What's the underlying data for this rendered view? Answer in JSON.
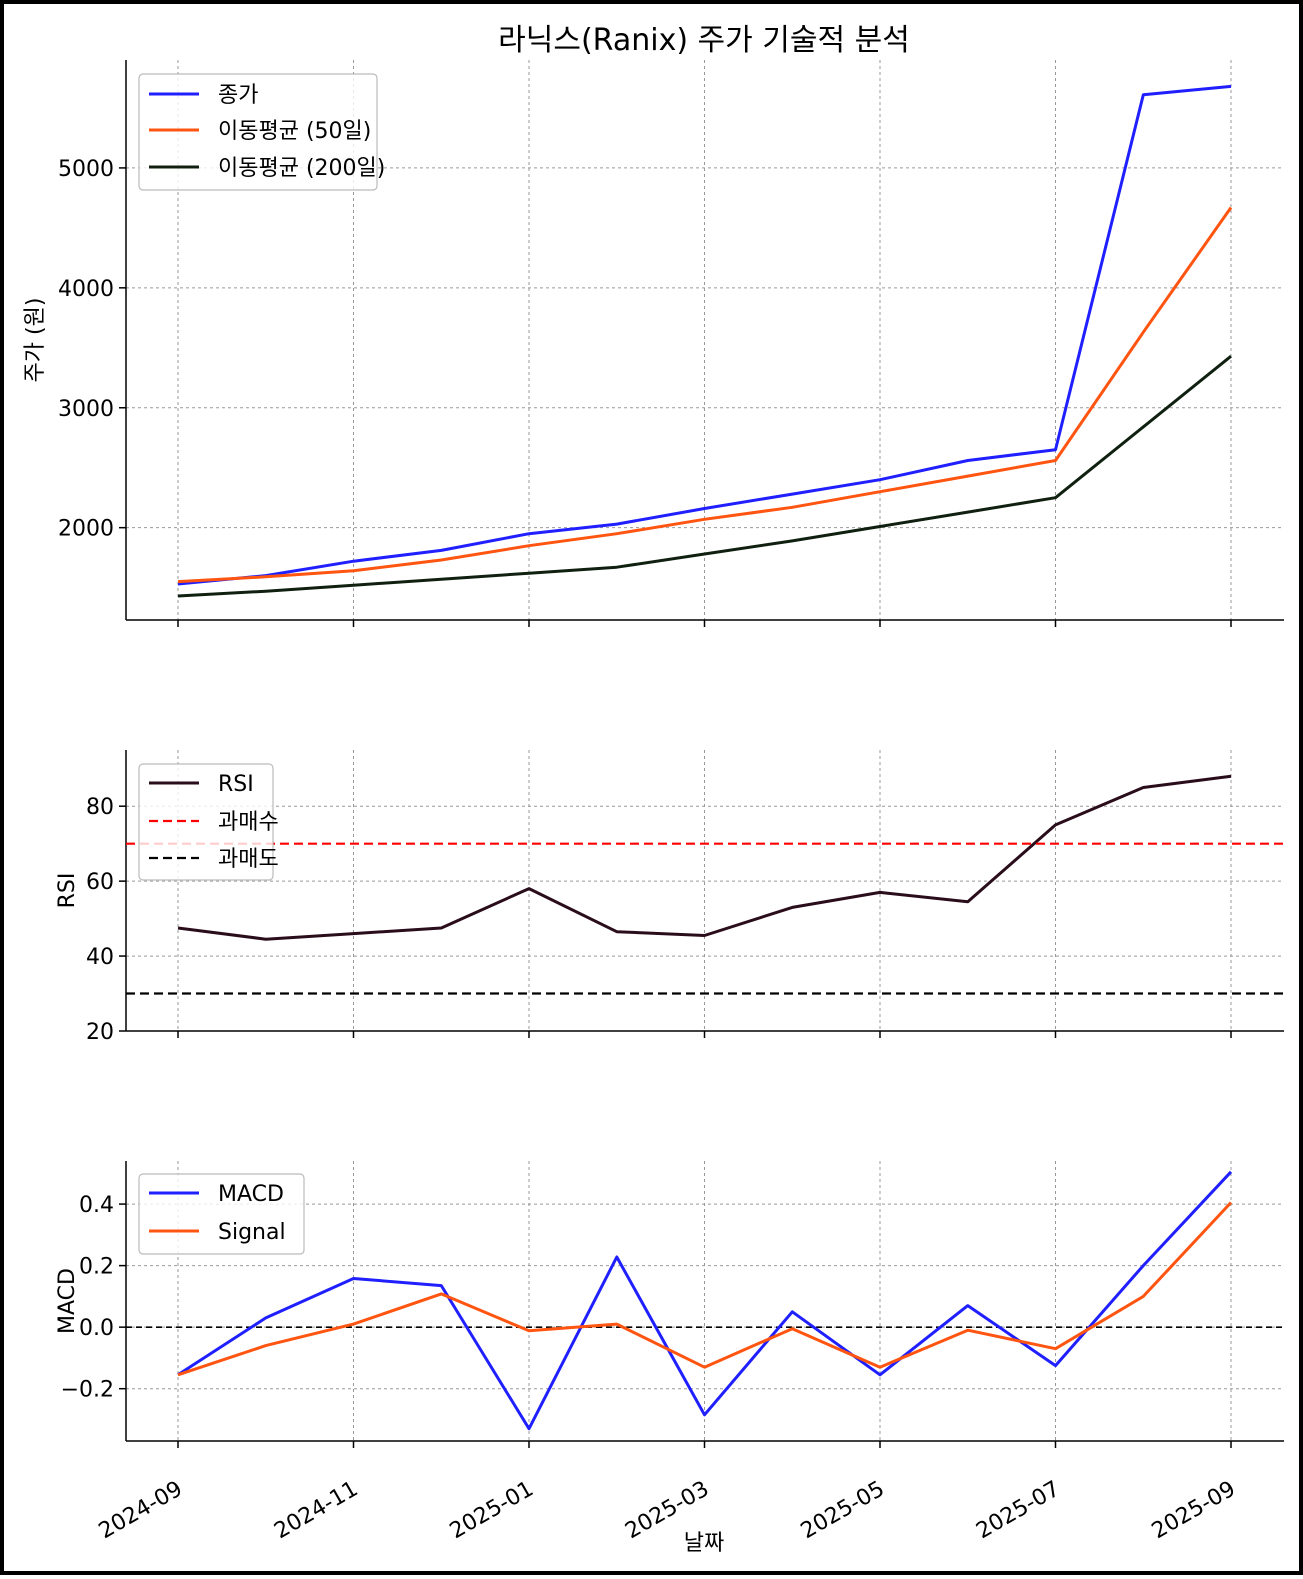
{
  "chart_data": [
    {
      "type": "line",
      "title": "라닉스(Ranix) 주가 기술적 분석",
      "ylabel": "주가 (원)",
      "x": [
        "2024-09",
        "2024-10",
        "2024-11",
        "2024-12",
        "2025-01",
        "2025-02",
        "2025-03",
        "2025-04",
        "2025-05",
        "2025-06",
        "2025-07",
        "2025-08",
        "2025-09"
      ],
      "ylim": [
        1230,
        5900
      ],
      "yticks": [
        2000,
        3000,
        4000,
        5000
      ],
      "grid": true,
      "legend": "top-left",
      "series": [
        {
          "name": "종가",
          "color": "#1f1fff",
          "values": [
            1530,
            1600,
            1720,
            1810,
            1950,
            2030,
            2160,
            2280,
            2400,
            2560,
            2650,
            5610,
            5680
          ]
        },
        {
          "name": "이동평균 (50일)",
          "color": "#ff5511",
          "values": [
            1550,
            1590,
            1640,
            1730,
            1850,
            1950,
            2070,
            2170,
            2300,
            2430,
            2560,
            3630,
            4670
          ]
        },
        {
          "name": "이동평균 (200일)",
          "color": "#102010",
          "values": [
            1430,
            1470,
            1520,
            1570,
            1620,
            1670,
            1780,
            1890,
            2010,
            2130,
            2250,
            2840,
            3430
          ]
        }
      ]
    },
    {
      "type": "line",
      "ylabel": "RSI",
      "x": [
        "2024-09",
        "2024-10",
        "2024-11",
        "2024-12",
        "2025-01",
        "2025-02",
        "2025-03",
        "2025-04",
        "2025-05",
        "2025-06",
        "2025-07",
        "2025-08",
        "2025-09"
      ],
      "ylim": [
        20,
        95
      ],
      "yticks": [
        20,
        40,
        60,
        80
      ],
      "grid": true,
      "legend": "top-left",
      "series": [
        {
          "name": "RSI",
          "color": "#2a0d1a",
          "values": [
            47.5,
            44.5,
            46,
            47.5,
            58,
            46.5,
            45.5,
            53,
            57,
            54.5,
            75,
            85,
            88
          ]
        },
        {
          "name": "과매수",
          "color": "#ff0000",
          "dashed": true,
          "values": [
            70,
            70,
            70,
            70,
            70,
            70,
            70,
            70,
            70,
            70,
            70,
            70,
            70
          ]
        },
        {
          "name": "과매도",
          "color": "#000000",
          "dashed": true,
          "values": [
            30,
            30,
            30,
            30,
            30,
            30,
            30,
            30,
            30,
            30,
            30,
            30,
            30
          ]
        }
      ]
    },
    {
      "type": "line",
      "ylabel": "MACD",
      "xlabel": "날짜",
      "x": [
        "2024-09",
        "2024-10",
        "2024-11",
        "2024-12",
        "2025-01",
        "2025-02",
        "2025-03",
        "2025-04",
        "2025-05",
        "2025-06",
        "2025-07",
        "2025-08",
        "2025-09"
      ],
      "ylim": [
        -0.37,
        0.54
      ],
      "yticks": [
        -0.2,
        0.0,
        0.2,
        0.4
      ],
      "ytick_labels": [
        "−0.2",
        "0.0",
        "0.2",
        "0.4"
      ],
      "xtick_labels": [
        "2024-09",
        "2024-11",
        "2025-01",
        "2025-03",
        "2025-05",
        "2025-07",
        "2025-09"
      ],
      "xtick_indices": [
        0,
        2,
        4,
        6,
        8,
        10,
        12
      ],
      "grid": true,
      "legend": "top-left",
      "zero_line": 0,
      "series": [
        {
          "name": "MACD",
          "color": "#1f1fff",
          "values": [
            -0.155,
            0.03,
            0.158,
            0.135,
            -0.33,
            0.228,
            -0.285,
            0.05,
            -0.155,
            0.07,
            -0.125,
            0.2,
            0.505
          ]
        },
        {
          "name": "Signal",
          "color": "#ff5511",
          "values": [
            -0.155,
            -0.06,
            0.01,
            0.108,
            -0.012,
            0.01,
            -0.13,
            -0.005,
            -0.13,
            -0.01,
            -0.07,
            0.1,
            0.405
          ]
        }
      ]
    }
  ]
}
